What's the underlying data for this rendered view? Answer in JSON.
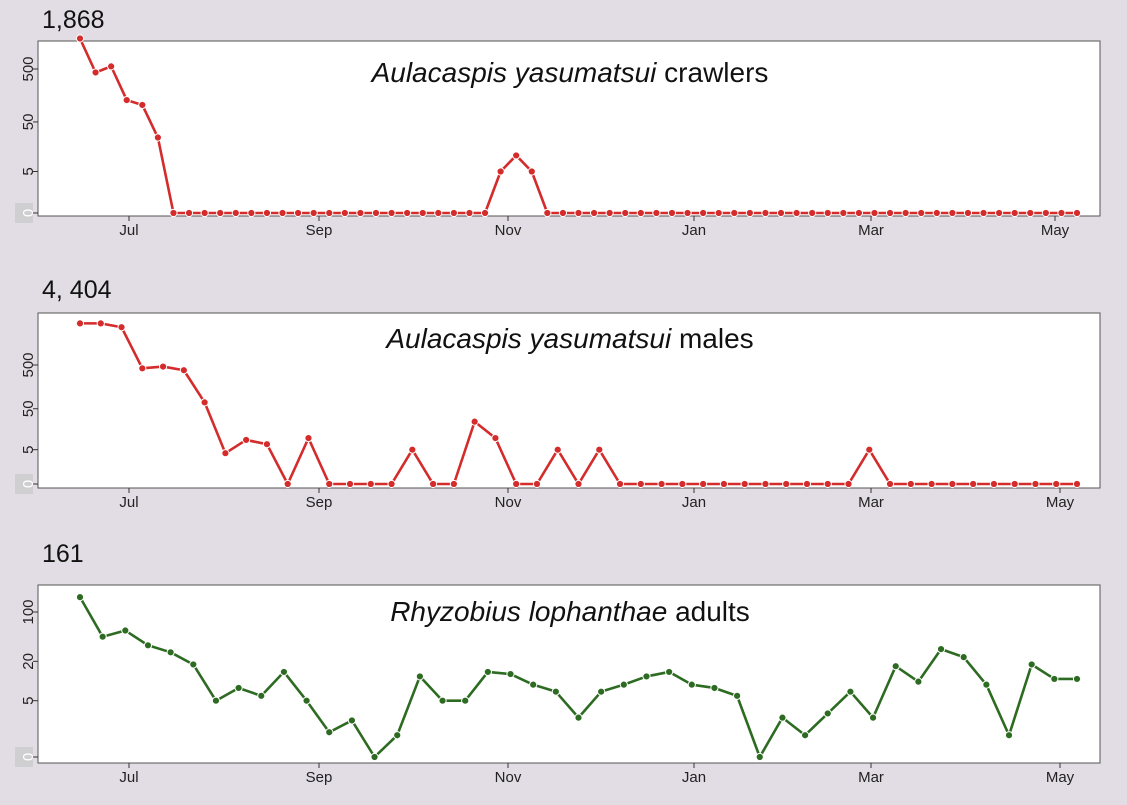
{
  "chart_data": [
    {
      "type": "line",
      "max_label": "1,868",
      "title_italic": "Aulacaspis yasumatsui",
      "title_rest": " crawlers",
      "x_ticks": [
        "Jul",
        "Sep",
        "Nov",
        "Jan",
        "Mar",
        "May"
      ],
      "y_ticks": [
        "0",
        "5",
        "50",
        "500"
      ],
      "y_tick_values": [
        0,
        5,
        50,
        500
      ],
      "y_scale": "log(y+1)",
      "ylim": [
        0,
        1868
      ],
      "color": "#d42b2b",
      "values": [
        1868,
        430,
        560,
        130,
        105,
        25,
        0,
        0,
        0,
        0,
        0,
        0,
        0,
        0,
        0,
        0,
        0,
        0,
        0,
        0,
        0,
        0,
        0,
        0,
        0,
        0,
        0,
        5,
        11,
        5,
        0,
        0,
        0,
        0,
        0,
        0,
        0,
        0,
        0,
        0,
        0,
        0,
        0,
        0,
        0,
        0,
        0,
        0,
        0,
        0,
        0,
        0,
        0,
        0,
        0,
        0,
        0,
        0,
        0,
        0,
        0,
        0,
        0,
        0,
        0
      ]
    },
    {
      "type": "line",
      "max_label": "4, 404",
      "title_italic": "Aulacaspis yasumatsui",
      "title_rest": " males",
      "x_ticks": [
        "Jul",
        "Sep",
        "Nov",
        "Jan",
        "Mar",
        "May"
      ],
      "y_ticks": [
        "0",
        "5",
        "50",
        "500"
      ],
      "y_tick_values": [
        0,
        5,
        50,
        500
      ],
      "y_scale": "log(y+1)",
      "ylim": [
        0,
        4404
      ],
      "color": "#d42b2b",
      "values": [
        4404,
        4404,
        3600,
        420,
        460,
        380,
        70,
        4,
        9,
        7,
        0,
        10,
        0,
        0,
        0,
        0,
        5,
        0,
        0,
        25,
        10,
        0,
        0,
        5,
        0,
        5,
        0,
        0,
        0,
        0,
        0,
        0,
        0,
        0,
        0,
        0,
        0,
        0,
        5,
        0,
        0,
        0,
        0,
        0,
        0,
        0,
        0,
        0,
        0
      ]
    },
    {
      "type": "line",
      "max_label": "161",
      "title_italic": "Rhyzobius lophanthae",
      "title_rest": " adults",
      "x_ticks": [
        "Jul",
        "Sep",
        "Nov",
        "Jan",
        "Mar",
        "May"
      ],
      "y_ticks": [
        "0",
        "5",
        "20",
        "100"
      ],
      "y_tick_values": [
        0,
        5,
        20,
        100
      ],
      "y_scale": "log(y+1)",
      "ylim": [
        0,
        161
      ],
      "color": "#2e6b22",
      "values": [
        161,
        45,
        55,
        34,
        27,
        18,
        5,
        8,
        6,
        14,
        5,
        1.2,
        2.2,
        0,
        1,
        12,
        5,
        5,
        14,
        13,
        9,
        7,
        2.5,
        7,
        9,
        12,
        14,
        9,
        8,
        6,
        0,
        2.5,
        1,
        3,
        7,
        2.5,
        17,
        10,
        30,
        23,
        9,
        1,
        18,
        11,
        11
      ]
    }
  ]
}
